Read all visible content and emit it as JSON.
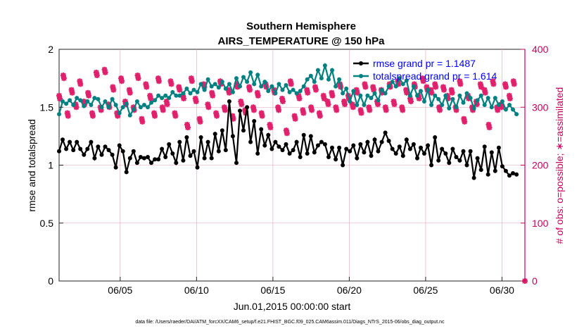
{
  "chart_data": {
    "type": "line",
    "title": [
      "Southern Hemisphere",
      "AIRS_TEMPERATURE @ 150 hPa"
    ],
    "xlabel": "Jun.01,2015 00:00:00 start",
    "ylabel": "rmse and totalspread",
    "ylabel_right": "# of obs: o=possible; ∗=assimilated",
    "footer": "data file: /Users/raeder/DAI/ATM_forcXX/CAM6_setup/f.e21.FHIST_BGC.f09_025.CAM6assim.011/Diags_NTrS_2015-06/obs_diag_output.nc",
    "xlim": [
      1,
      31.5
    ],
    "ylim": [
      0,
      2
    ],
    "ylim_right": [
      0,
      400
    ],
    "x_ticks": [
      5,
      10,
      15,
      20,
      25,
      30
    ],
    "x_tick_labels": [
      "06/05",
      "06/10",
      "06/15",
      "06/20",
      "06/25",
      "06/30"
    ],
    "y_ticks": [
      0,
      0.5,
      1,
      1.5,
      2
    ],
    "y_tick_labels": [
      "0",
      "0.5",
      "1",
      "1.5",
      "2"
    ],
    "y_ticks_right": [
      0,
      100,
      200,
      300,
      400
    ],
    "y_tick_labels_right": [
      "0",
      "100",
      "200",
      "300",
      "400"
    ],
    "colors": {
      "rmse": "#000000",
      "spread": "#008080",
      "obs": "#e0206a",
      "legend_text": "#0000ff",
      "right_axis": "#c8005a"
    },
    "series": [
      {
        "name": "rmse grand pr = 1.1487",
        "axis": "left",
        "values": [
          1.12,
          1.22,
          1.14,
          1.2,
          1.13,
          1.2,
          1.14,
          1.09,
          1.14,
          1.2,
          1.06,
          1.16,
          1.09,
          1.16,
          1.13,
          1.09,
          0.98,
          1.17,
          1.12,
          0.94,
          1.06,
          1.12,
          1.02,
          1.07,
          1.06,
          1.07,
          1.02,
          1.05,
          1.05,
          1.14,
          1.07,
          1.18,
          1.1,
          1.02,
          1.2,
          1.04,
          1.24,
          1.08,
          1.12,
          0.98,
          1.24,
          1.06,
          1.2,
          1.06,
          1.27,
          1.12,
          1.3,
          1.13,
          1.55,
          1.25,
          1.02,
          1.47,
          1.3,
          1.5,
          1.2,
          1.38,
          1.1,
          1.31,
          1.17,
          1.26,
          1.14,
          1.2,
          1.16,
          1.13,
          1.18,
          1.1,
          1.13,
          1.2,
          1.07,
          1.26,
          1.1,
          1.25,
          1.11,
          1.17,
          1.2,
          1.18,
          1.07,
          1.15,
          1.05,
          1.15,
          1.0,
          1.14,
          1.12,
          1.17,
          1.06,
          1.18,
          1.11,
          1.2,
          1.08,
          1.22,
          1.12,
          1.2,
          1.28,
          1.21,
          1.14,
          1.1,
          1.16,
          1.08,
          1.22,
          1.14,
          1.18,
          1.06,
          1.15,
          1.1,
          1.17,
          1.0,
          1.24,
          1.04,
          1.14,
          1.1,
          1.02,
          1.14,
          1.07,
          1.04,
          1.12,
          1.0,
          1.12,
          0.89,
          1.06,
          0.96,
          1.16,
          0.92,
          1.11,
          0.95,
          1.15,
          0.99,
          0.95,
          0.91,
          0.93,
          0.92
        ]
      },
      {
        "name": "totalspread grand pr = 1.614",
        "axis": "left",
        "values": [
          1.44,
          1.55,
          1.53,
          1.56,
          1.52,
          1.58,
          1.56,
          1.51,
          1.55,
          1.52,
          1.58,
          1.57,
          1.5,
          1.55,
          1.5,
          1.57,
          1.52,
          1.45,
          1.5,
          1.53,
          1.43,
          1.48,
          1.55,
          1.5,
          1.52,
          1.5,
          1.54,
          1.56,
          1.6,
          1.58,
          1.6,
          1.58,
          1.63,
          1.6,
          1.6,
          1.62,
          1.66,
          1.62,
          1.65,
          1.63,
          1.7,
          1.65,
          1.74,
          1.68,
          1.7,
          1.67,
          1.72,
          1.66,
          1.7,
          1.63,
          1.75,
          1.68,
          1.76,
          1.72,
          1.8,
          1.7,
          1.78,
          1.68,
          1.72,
          1.64,
          1.68,
          1.62,
          1.7,
          1.65,
          1.69,
          1.63,
          1.65,
          1.62,
          1.64,
          1.68,
          1.74,
          1.77,
          1.72,
          1.82,
          1.75,
          1.86,
          1.74,
          1.82,
          1.68,
          1.74,
          1.62,
          1.66,
          1.55,
          1.64,
          1.52,
          1.6,
          1.52,
          1.6,
          1.58,
          1.62,
          1.56,
          1.65,
          1.62,
          1.68,
          1.72,
          1.68,
          1.75,
          1.7,
          1.73,
          1.6,
          1.68,
          1.6,
          1.64,
          1.55,
          1.65,
          1.52,
          1.6,
          1.57,
          1.52,
          1.6,
          1.49,
          1.57,
          1.5,
          1.6,
          1.54,
          1.62,
          1.58,
          1.49,
          1.56,
          1.6,
          1.52,
          1.58,
          1.5,
          1.58,
          1.52,
          1.55,
          1.48,
          1.52,
          1.48,
          1.44
        ]
      }
    ],
    "legend": {
      "location": "top-right",
      "entries": [
        "rmse grand pr = 1.1487",
        "totalspread grand pr = 1.614"
      ]
    },
    "obs_possible_right": [
      320,
      355,
      290,
      330,
      305,
      345,
      310,
      325,
      290,
      360,
      300,
      365,
      305,
      335,
      290,
      350,
      310,
      330,
      300,
      355,
      280,
      340,
      320,
      290,
      350,
      300,
      310,
      345,
      290,
      335,
      320,
      270,
      350,
      315,
      280,
      340,
      305,
      325,
      290,
      345,
      300,
      330,
      285,
      340,
      310,
      295,
      335,
      300,
      325,
      290,
      340,
      270,
      330,
      300,
      315,
      260,
      345,
      285,
      320,
      295,
      330,
      300,
      335,
      290,
      320,
      310,
      325,
      300,
      340,
      310,
      320,
      305,
      330,
      295,
      340,
      300,
      335,
      310,
      330,
      300,
      340,
      310,
      345,
      300,
      330,
      315,
      340,
      320,
      350,
      335,
      330,
      340,
      300,
      335,
      320,
      330,
      300,
      345,
      280,
      320,
      300,
      310,
      340,
      330,
      270,
      345,
      300,
      305,
      340,
      320,
      345
    ],
    "obs_assimilated_right": [
      315,
      350,
      285,
      325,
      300,
      340,
      305,
      320,
      285,
      355,
      295,
      360,
      300,
      330,
      285,
      345,
      305,
      325,
      295,
      350,
      275,
      335,
      315,
      285,
      345,
      295,
      305,
      340,
      285,
      330,
      315,
      265,
      345,
      310,
      275,
      335,
      300,
      320,
      285,
      340,
      295,
      325,
      280,
      335,
      305,
      290,
      330,
      295,
      320,
      285,
      335,
      265,
      325,
      295,
      310,
      255,
      340,
      280,
      315,
      290,
      325,
      295,
      330,
      285,
      315,
      305,
      320,
      295,
      335,
      305,
      315,
      300,
      325,
      290,
      335,
      295,
      330,
      305,
      325,
      295,
      335,
      305,
      340,
      295,
      325,
      310,
      335,
      315,
      345,
      330,
      325,
      335,
      295,
      330,
      315,
      325,
      295,
      340,
      275,
      315,
      295,
      305,
      335,
      325,
      265,
      340,
      295,
      300,
      335,
      315,
      340
    ]
  }
}
